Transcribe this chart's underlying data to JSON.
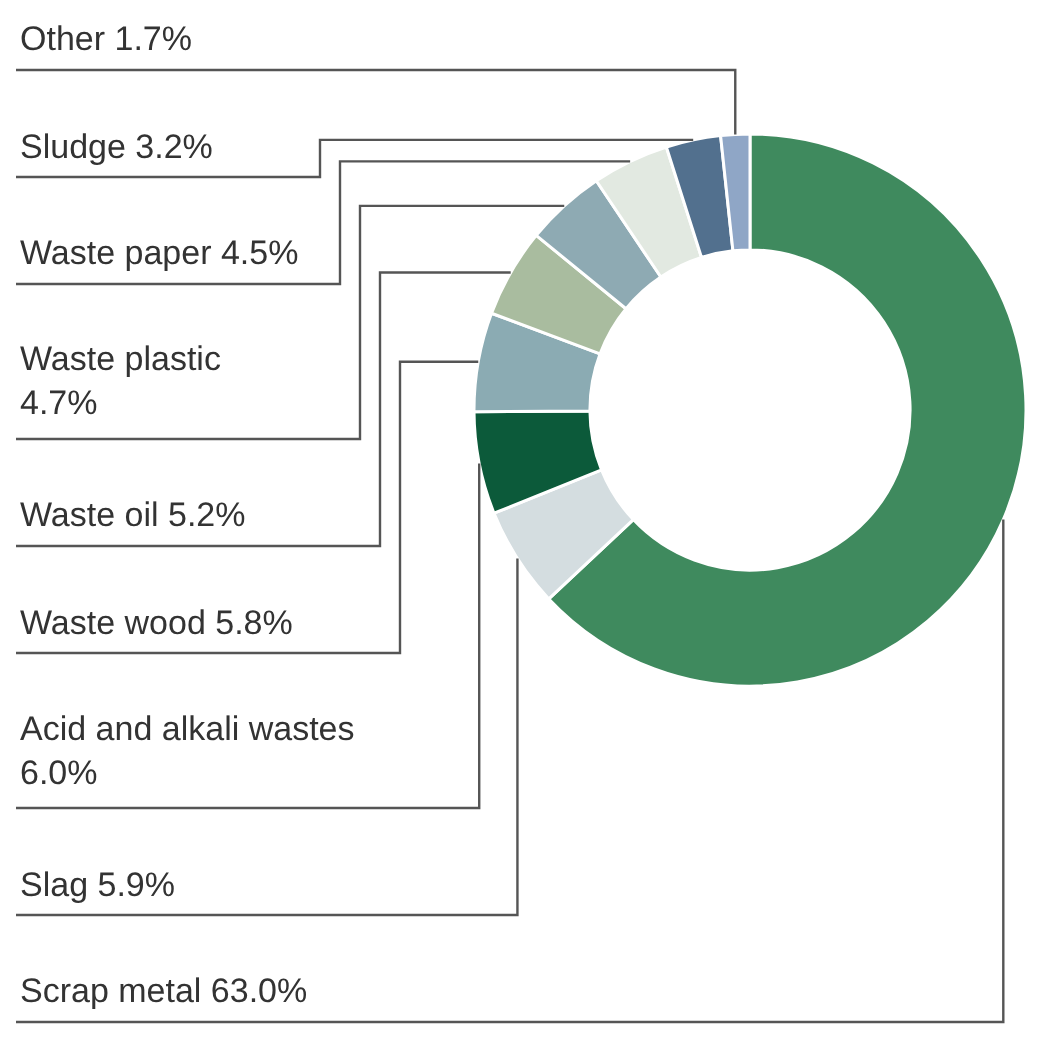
{
  "chart_data": {
    "type": "donut",
    "categories": [
      "Scrap metal",
      "Slag",
      "Acid and alkali wastes",
      "Waste wood",
      "Waste oil",
      "Waste plastic",
      "Waste paper",
      "Sludge",
      "Other"
    ],
    "values": [
      63.0,
      5.9,
      6.0,
      5.8,
      5.2,
      4.7,
      4.5,
      3.2,
      1.7
    ],
    "value_labels": [
      "63.0%",
      "5.9%",
      "6.0%",
      "5.8%",
      "5.2%",
      "4.7%",
      "4.5%",
      "3.2%",
      "1.7%"
    ],
    "colors": [
      "#3f8a5e",
      "#d4dde0",
      "#0c5a3a",
      "#8babb3",
      "#a9bc9f",
      "#8eaab3",
      "#e2e9e1",
      "#52708e",
      "#8fa6c6"
    ]
  }
}
